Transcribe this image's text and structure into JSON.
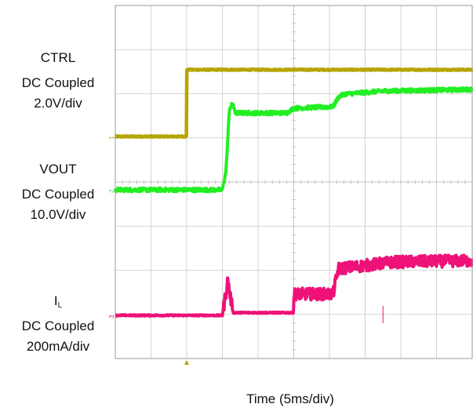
{
  "chart_data": {
    "type": "line",
    "title": "",
    "xlabel": "Time (5ms/div)",
    "ylabel": "",
    "grid": true,
    "divisions": {
      "x": 10,
      "y": 8
    },
    "channels": [
      {
        "id": "ch1",
        "marker": "1",
        "name_main": "CTRL",
        "name_sub": "",
        "coupling": "DC Coupled",
        "scale": "2.0V/div",
        "color": "#b5a500",
        "points": [
          [
            0,
            0
          ],
          [
            2.0,
            0
          ],
          [
            2.0,
            2.3
          ],
          [
            10,
            2.3
          ]
        ],
        "noise": 0.04
      },
      {
        "id": "ch2",
        "marker": "2",
        "name_main": "VOUT",
        "name_sub": "",
        "coupling": "DC Coupled",
        "scale": "10.0V/div",
        "color": "#22ee22",
        "points": [
          [
            0,
            0
          ],
          [
            3.0,
            0
          ],
          [
            3.1,
            0.6
          ],
          [
            3.2,
            2.6
          ],
          [
            3.3,
            2.75
          ],
          [
            3.35,
            2.45
          ],
          [
            4.8,
            2.45
          ],
          [
            5.0,
            2.6
          ],
          [
            6.1,
            2.65
          ],
          [
            6.25,
            2.95
          ],
          [
            6.4,
            3.05
          ],
          [
            7.5,
            3.15
          ],
          [
            10,
            3.2
          ]
        ],
        "noise": 0.12
      },
      {
        "id": "ch3",
        "marker": "3",
        "name_main": "I",
        "name_sub": "L",
        "coupling": "DC Coupled",
        "scale": "200mA/div",
        "color": "#ee1177",
        "points": [
          [
            0,
            0
          ],
          [
            3.0,
            0
          ],
          [
            3.15,
            1.3
          ],
          [
            3.3,
            0.1
          ],
          [
            5.0,
            0.1
          ],
          [
            5.0,
            0.8
          ],
          [
            6.1,
            0.8
          ],
          [
            6.25,
            1.75
          ],
          [
            7.8,
            2.0
          ],
          [
            10,
            2.05
          ]
        ],
        "noise": 0.45
      }
    ]
  }
}
